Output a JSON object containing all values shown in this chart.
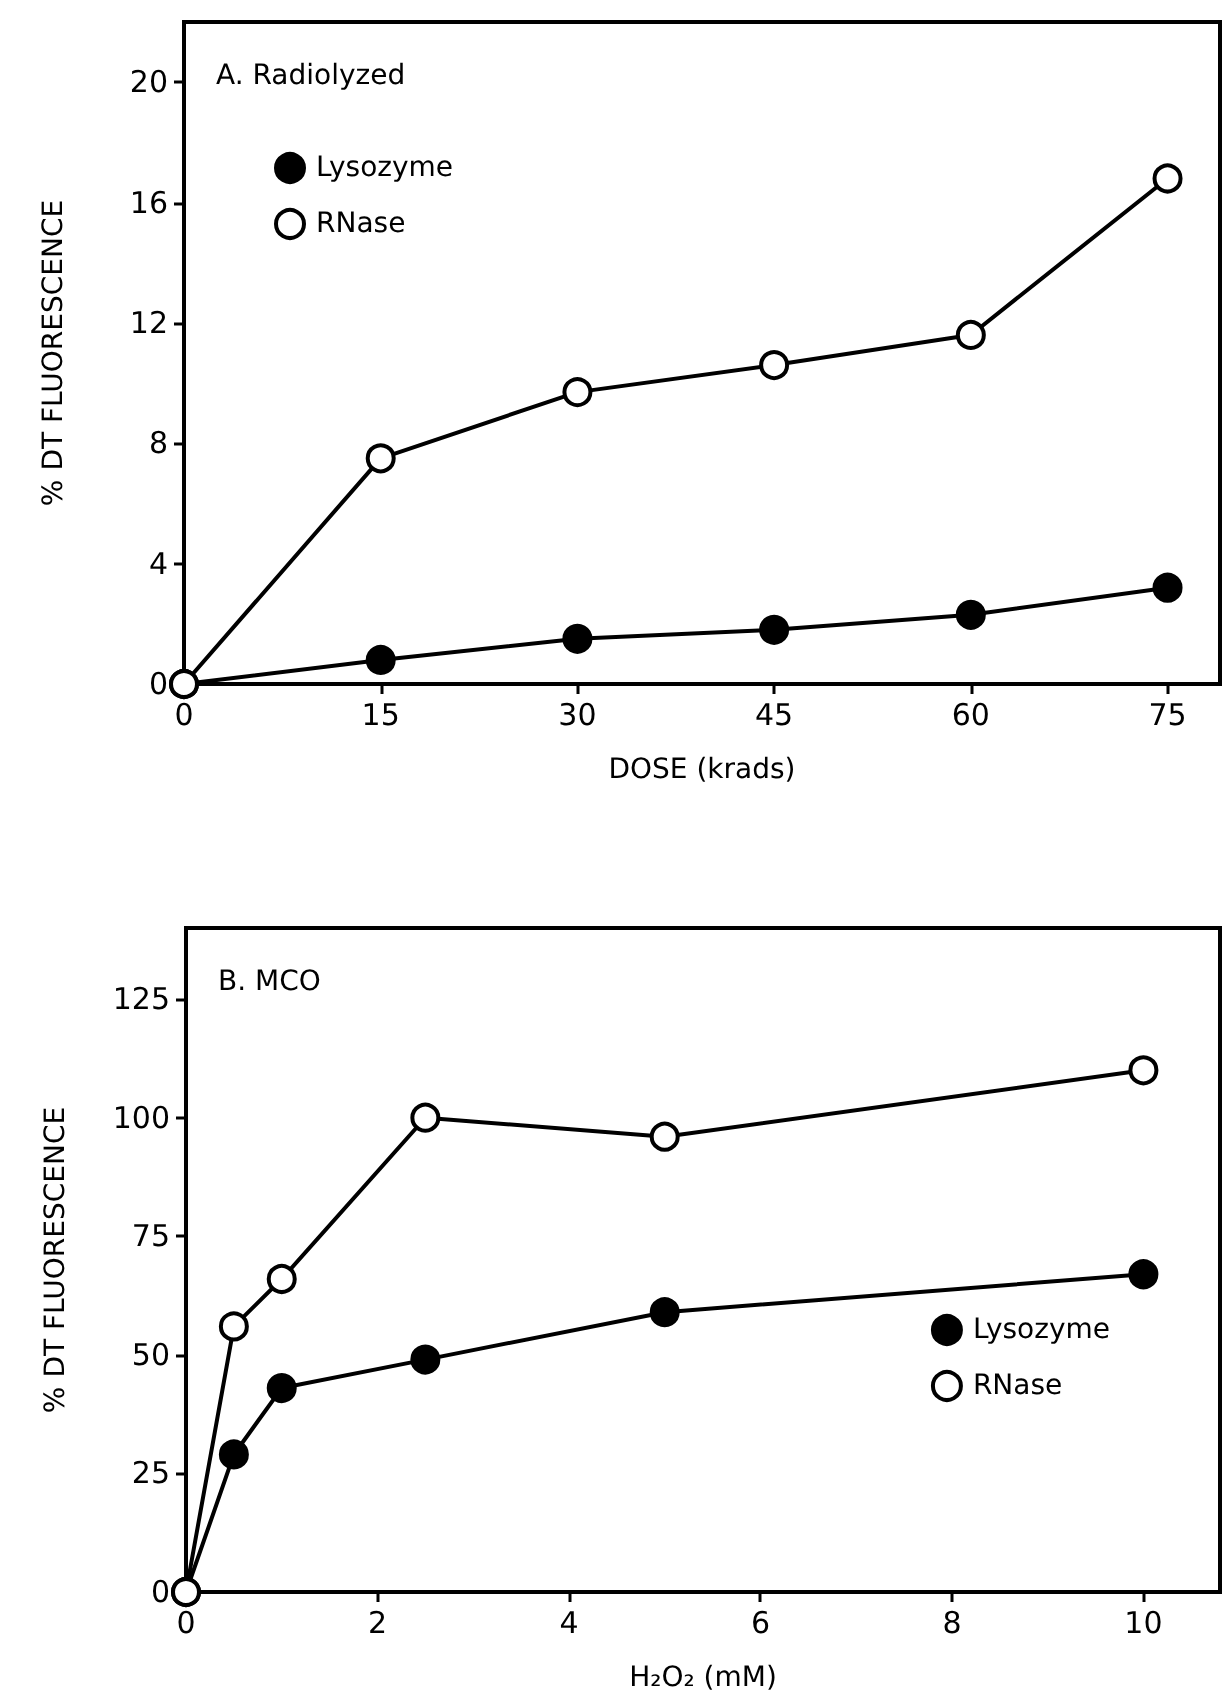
{
  "chart_data": [
    {
      "type": "line",
      "annotations": [
        "A. Radiolyzed"
      ],
      "xlabel": "DOSE (krads)",
      "ylabel": "% DT FLUORESCENCE",
      "x": [
        0,
        15,
        30,
        45,
        60,
        75
      ],
      "xlim": [
        0,
        79
      ],
      "xticks": [
        0,
        15,
        30,
        45,
        60,
        75
      ],
      "ylim": [
        0,
        22
      ],
      "yticks": [
        0,
        4,
        8,
        12,
        16,
        20
      ],
      "grid": false,
      "legend": "top left",
      "line_style": "solid",
      "series": [
        {
          "name": "Lysozyme",
          "color": "#000000",
          "marker": "circle",
          "values": [
            0,
            0.8,
            1.5,
            1.8,
            2.3,
            3.2
          ]
        },
        {
          "name": "RNase",
          "color": "#000000",
          "marker": "open circle",
          "values": [
            0,
            7.5,
            9.7,
            10.6,
            11.6,
            16.8
          ]
        }
      ]
    },
    {
      "type": "line",
      "annotations": [
        "B. MCO"
      ],
      "xlabel": "H₂O₂ (mM)",
      "ylabel": "% DT FLUORESCENCE",
      "x": [
        0,
        0.5,
        1,
        2.5,
        5,
        10
      ],
      "xlim": [
        0,
        10.8
      ],
      "xticks": [
        0,
        2,
        4,
        6,
        8,
        10
      ],
      "ylim": [
        0,
        140
      ],
      "yticks": [
        0,
        25,
        50,
        75,
        100,
        125
      ],
      "grid": false,
      "legend": "bottom right",
      "line_style": "solid",
      "series": [
        {
          "name": "Lysozyme",
          "color": "#000000",
          "marker": "circle",
          "values": [
            0,
            29,
            43,
            49,
            59,
            67
          ]
        },
        {
          "name": "RNase",
          "color": "#000000",
          "marker": "open circle",
          "values": [
            0,
            56,
            66,
            100,
            96,
            110
          ]
        }
      ]
    }
  ]
}
